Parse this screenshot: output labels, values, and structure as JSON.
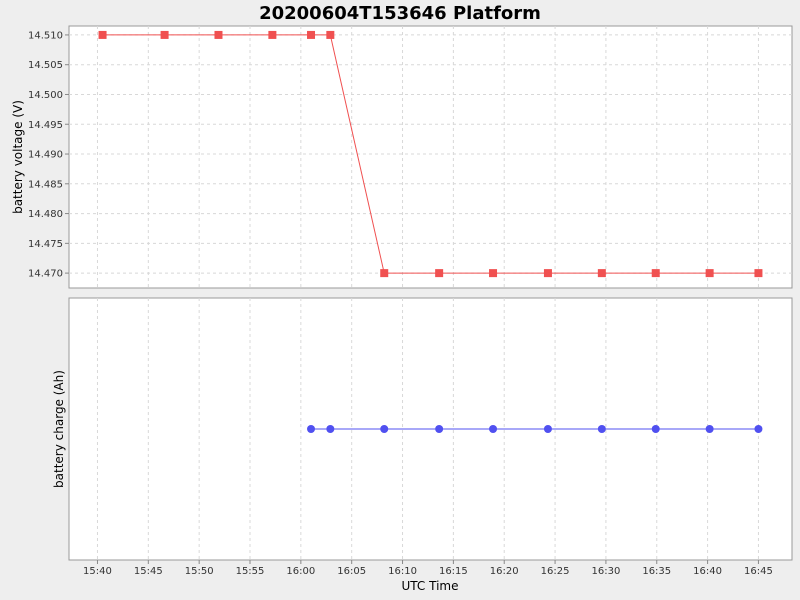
{
  "chart_data": {
    "title": "20200604T153646 Platform",
    "xlabel": "UTC Time",
    "x_ticks": [
      "15:40",
      "15:45",
      "15:50",
      "15:55",
      "16:00",
      "16:05",
      "16:10",
      "16:15",
      "16:20",
      "16:25",
      "16:30",
      "16:35",
      "16:40",
      "16:45"
    ],
    "x_tick_minutes": [
      0,
      5,
      10,
      15,
      20,
      25,
      30,
      35,
      40,
      45,
      50,
      55,
      60,
      65
    ],
    "xlim_minutes": [
      -2.8,
      68.3
    ],
    "x_unit_note": "",
    "grid": true,
    "panels": [
      {
        "type": "line",
        "ylabel": "battery voltage (V)",
        "y_ticks": [
          "14.470",
          "14.475",
          "14.480",
          "14.485",
          "14.490",
          "14.495",
          "14.500",
          "14.505",
          "14.510"
        ],
        "ylim": [
          14.4675,
          14.5115
        ],
        "series": [
          {
            "marker": "square",
            "color": "#f05050",
            "x_minutes": [
              0.5,
              6.6,
              11.9,
              17.2,
              21.0,
              22.9,
              28.2,
              33.6,
              38.9,
              44.3,
              49.6,
              54.9,
              60.2,
              65.0
            ],
            "values": [
              14.51,
              14.51,
              14.51,
              14.51,
              14.51,
              14.51,
              14.47,
              14.47,
              14.47,
              14.47,
              14.47,
              14.47,
              14.47,
              14.47
            ]
          }
        ]
      },
      {
        "type": "line",
        "ylabel": "battery charge (Ah)",
        "y_ticks": [],
        "ylim": [
          -1,
          1
        ],
        "series": [
          {
            "marker": "circle",
            "color": "#5050f0",
            "x_minutes": [
              21.0,
              22.9,
              28.2,
              33.6,
              38.9,
              44.3,
              49.6,
              54.9,
              60.2,
              65.0
            ],
            "values": [
              0,
              0,
              0,
              0,
              0,
              0,
              0,
              0,
              0,
              0
            ]
          }
        ]
      }
    ]
  }
}
